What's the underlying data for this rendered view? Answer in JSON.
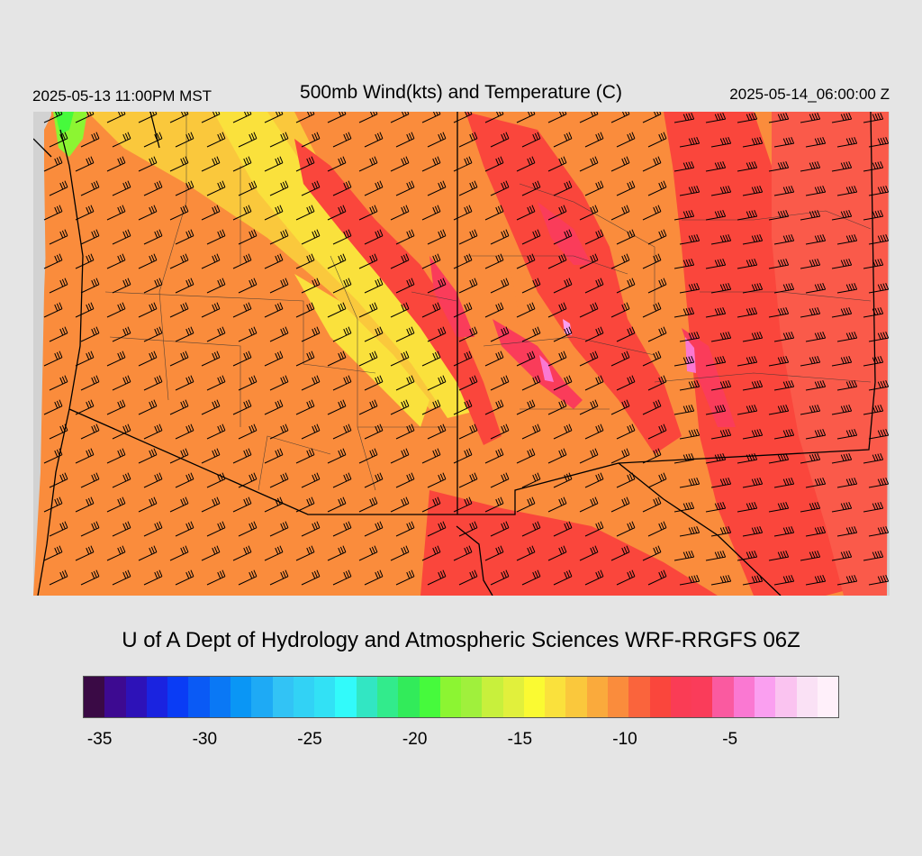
{
  "header": {
    "local_time": "2025-05-13 11:00PM MST",
    "title": "500mb Wind(kts) and Temperature (C)",
    "valid_time": "2025-05-14_06:00:00 Z"
  },
  "credit": "U of A Dept of Hydrology and Atmospheric Sciences WRF-RRGFS 06Z",
  "colorbar": {
    "colors": [
      "#3a0a45",
      "#3d0a91",
      "#2d12b8",
      "#1a23e0",
      "#0a3cf5",
      "#0a5af5",
      "#0a78f5",
      "#0a96f5",
      "#1eaaf5",
      "#32c3f5",
      "#32d2f5",
      "#32e1f5",
      "#32fafa",
      "#32e6c3",
      "#32eb8c",
      "#32eb5a",
      "#46fa3c",
      "#8cf532",
      "#a0f03c",
      "#c8f03c",
      "#e1f03c",
      "#fafa32",
      "#fae13c",
      "#fac83c",
      "#faaa3c",
      "#fa8c3c",
      "#fa643c",
      "#fa463c",
      "#fa3c55",
      "#fa3c5a",
      "#fa5aa0",
      "#fa78d2",
      "#fa9ff0",
      "#fac3f0",
      "#fae1f5",
      "#fff0fa"
    ],
    "tick_labels": [
      "-35",
      "-30",
      "-25",
      "-20",
      "-15",
      "-10",
      "-5"
    ]
  },
  "map": {
    "legend_unit": "C",
    "palette": {
      "cold": "#46fa3c",
      "cool": "#fae13c",
      "mid": "#fac83c",
      "warm": "#fa8c3c",
      "hot": "#fa463c",
      "hottest": "#fa3c5a",
      "peak": "#fa78d2",
      "out_of_domain": "#d2d2d2"
    }
  }
}
